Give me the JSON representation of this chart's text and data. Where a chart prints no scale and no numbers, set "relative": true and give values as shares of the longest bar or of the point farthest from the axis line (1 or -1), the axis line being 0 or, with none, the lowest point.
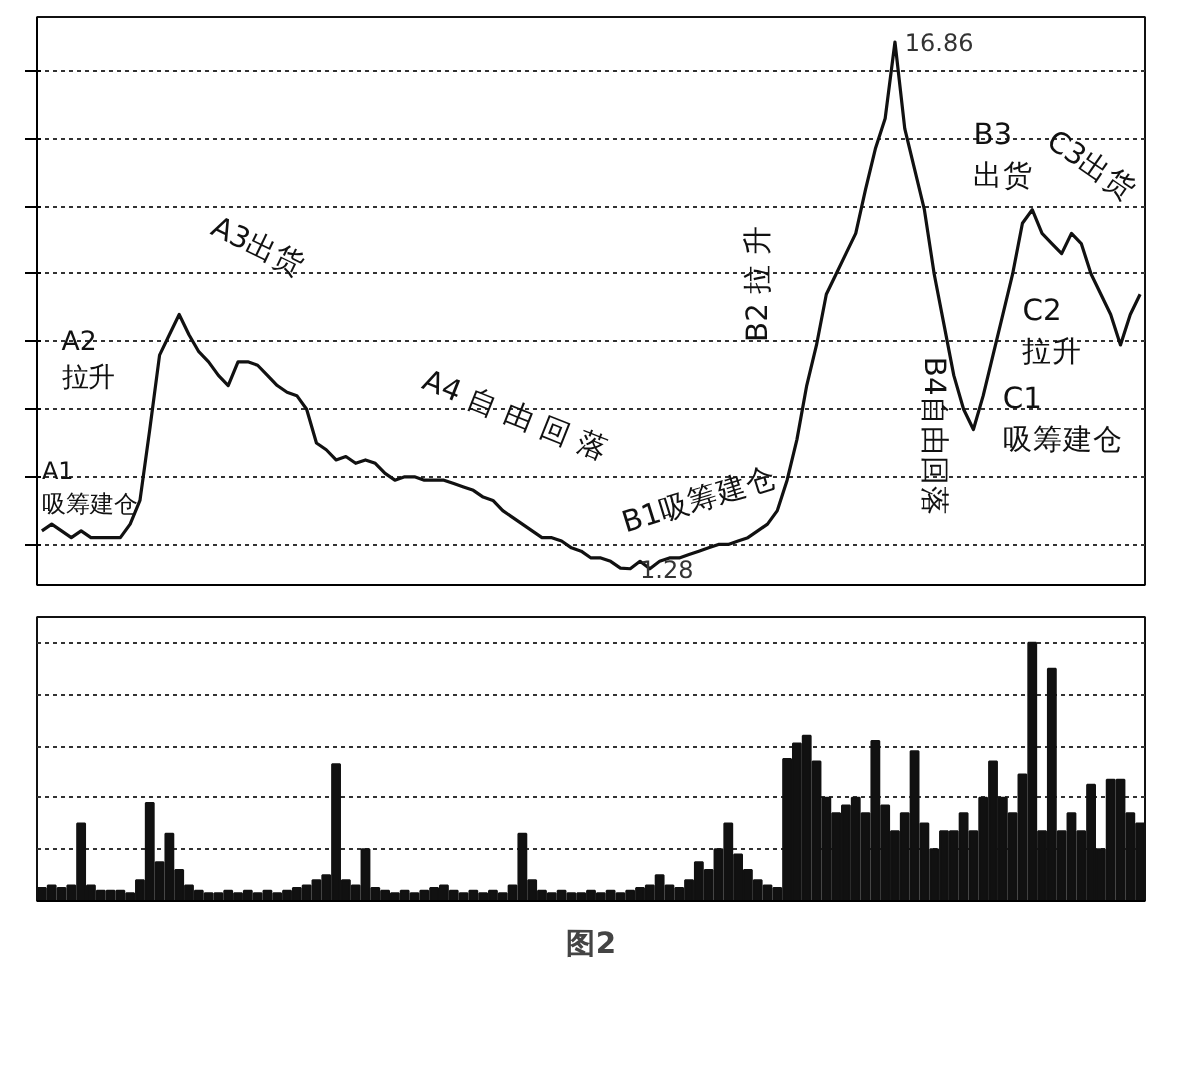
{
  "chart_data": [
    {
      "type": "line",
      "categories": [
        null,
        null,
        null,
        null,
        null,
        null,
        null,
        null,
        null,
        null,
        null,
        null,
        null,
        null,
        null,
        null,
        null,
        null,
        null,
        null,
        null,
        null,
        null,
        null,
        null,
        null,
        null,
        null,
        null,
        null,
        null,
        null,
        null,
        null,
        null,
        null,
        null,
        null,
        null,
        null,
        null,
        null,
        null,
        null,
        null,
        null,
        null,
        null,
        null,
        null,
        null,
        null,
        null,
        null,
        null,
        null,
        null,
        null,
        null,
        null,
        null,
        null,
        null,
        null,
        null,
        null,
        null,
        null,
        null,
        null,
        null,
        null,
        null,
        null,
        null,
        null,
        null,
        null,
        null,
        null,
        null,
        null,
        null,
        null,
        null,
        null,
        null,
        null,
        null,
        null,
        null,
        null,
        null,
        null,
        null,
        null,
        null,
        null,
        null,
        null,
        null,
        null,
        null,
        null,
        null,
        null,
        null,
        null,
        null,
        null,
        null,
        null,
        null
      ],
      "series": [
        {
          "color": "#111111",
          "values": [
            2.4,
            2.6,
            2.4,
            2.2,
            2.4,
            2.2,
            2.2,
            2.2,
            2.2,
            2.6,
            3.3,
            5.4,
            7.6,
            8.2,
            8.8,
            8.2,
            7.7,
            7.4,
            7.0,
            6.7,
            7.4,
            7.4,
            7.3,
            7.0,
            6.7,
            6.5,
            6.4,
            6.0,
            5.0,
            4.8,
            4.5,
            4.6,
            4.4,
            4.5,
            4.4,
            4.1,
            3.9,
            4.0,
            4.0,
            3.9,
            3.9,
            3.9,
            3.8,
            3.7,
            3.6,
            3.4,
            3.3,
            3.0,
            2.8,
            2.6,
            2.4,
            2.2,
            2.2,
            2.1,
            1.9,
            1.8,
            1.6,
            1.6,
            1.5,
            1.3,
            1.28,
            1.5,
            1.28,
            1.5,
            1.6,
            1.6,
            1.7,
            1.8,
            1.9,
            2.0,
            2.0,
            2.1,
            2.2,
            2.4,
            2.6,
            3.0,
            3.9,
            5.1,
            6.7,
            7.9,
            9.4,
            10.0,
            10.6,
            11.2,
            12.5,
            13.7,
            14.6,
            16.86,
            14.3,
            13.1,
            11.9,
            10.0,
            8.5,
            7.0,
            6.0,
            5.4,
            6.4,
            7.6,
            8.8,
            10.0,
            11.5,
            11.9,
            11.2,
            10.9,
            10.6,
            11.2,
            10.9,
            10.0,
            9.4,
            8.8,
            7.9,
            8.8,
            9.4
          ],
          "value_labels": [
            null,
            null,
            null,
            null,
            null,
            null,
            null,
            null,
            null,
            null,
            null,
            null,
            null,
            null,
            null,
            null,
            null,
            null,
            null,
            null,
            null,
            null,
            null,
            null,
            null,
            null,
            null,
            null,
            null,
            null,
            null,
            null,
            null,
            null,
            null,
            null,
            null,
            null,
            null,
            null,
            null,
            null,
            null,
            null,
            null,
            null,
            null,
            null,
            null,
            null,
            null,
            null,
            null,
            null,
            null,
            null,
            null,
            null,
            null,
            null,
            "1.28",
            null,
            null,
            null,
            null,
            null,
            null,
            null,
            null,
            null,
            null,
            null,
            null,
            null,
            null,
            null,
            null,
            null,
            null,
            null,
            null,
            null,
            null,
            null,
            null,
            null,
            null,
            "16.86",
            null,
            null,
            null,
            null,
            null,
            null,
            null,
            null,
            null,
            null,
            null,
            null,
            null,
            null,
            null,
            null,
            null,
            null,
            null,
            null,
            null,
            null,
            null,
            null,
            null
          ]
        }
      ],
      "yticks": [
        {
          "value": 2,
          "label": null
        },
        {
          "value": 4,
          "label": null
        },
        {
          "value": 6,
          "label": null
        },
        {
          "value": 8,
          "label": null
        },
        {
          "value": 10,
          "label": null
        },
        {
          "value": 12,
          "label": null
        },
        {
          "value": 14,
          "label": null
        },
        {
          "value": 16,
          "label": null
        }
      ],
      "ylim": [
        0.8,
        17.6
      ],
      "grid": "y",
      "line_style": "solid",
      "marker": "none",
      "annotations": [
        "A1\n吸筹建仓",
        "A2\n拉升",
        "A3出货",
        "A4  自  由  回  落",
        "B1吸筹建仓",
        "B2  拉  升",
        "B3\n出货",
        "B4自由回落",
        "C2\n拉升",
        "C1\n吸筹建仓",
        "C3出货"
      ]
    },
    {
      "type": "bar",
      "relative": true,
      "grid": "y",
      "categories": [
        null,
        null,
        null,
        null,
        null,
        null,
        null,
        null,
        null,
        null,
        null,
        null,
        null,
        null,
        null,
        null,
        null,
        null,
        null,
        null,
        null,
        null,
        null,
        null,
        null,
        null,
        null,
        null,
        null,
        null,
        null,
        null,
        null,
        null,
        null,
        null,
        null,
        null,
        null,
        null,
        null,
        null,
        null,
        null,
        null,
        null,
        null,
        null,
        null,
        null,
        null,
        null,
        null,
        null,
        null,
        null,
        null,
        null,
        null,
        null,
        null,
        null,
        null,
        null,
        null,
        null,
        null,
        null,
        null,
        null,
        null,
        null,
        null,
        null,
        null,
        null,
        null,
        null,
        null,
        null,
        null,
        null,
        null,
        null,
        null,
        null,
        null,
        null,
        null,
        null,
        null,
        null,
        null,
        null,
        null,
        null,
        null,
        null,
        null,
        null,
        null,
        null,
        null,
        null,
        null,
        null,
        null,
        null,
        null,
        null,
        null,
        null,
        null
      ],
      "color": "#111111",
      "values": [
        0.05,
        0.06,
        0.05,
        0.06,
        0.3,
        0.06,
        0.04,
        0.04,
        0.04,
        0.03,
        0.08,
        0.38,
        0.15,
        0.26,
        0.12,
        0.06,
        0.04,
        0.03,
        0.03,
        0.04,
        0.03,
        0.04,
        0.03,
        0.04,
        0.03,
        0.04,
        0.05,
        0.06,
        0.08,
        0.1,
        0.53,
        0.08,
        0.06,
        0.2,
        0.05,
        0.04,
        0.03,
        0.04,
        0.03,
        0.04,
        0.05,
        0.06,
        0.04,
        0.03,
        0.04,
        0.03,
        0.04,
        0.03,
        0.06,
        0.26,
        0.08,
        0.04,
        0.03,
        0.04,
        0.03,
        0.03,
        0.04,
        0.03,
        0.04,
        0.03,
        0.04,
        0.05,
        0.06,
        0.1,
        0.06,
        0.05,
        0.08,
        0.15,
        0.12,
        0.2,
        0.3,
        0.18,
        0.12,
        0.08,
        0.06,
        0.05,
        0.55,
        0.61,
        0.64,
        0.54,
        0.4,
        0.34,
        0.37,
        0.4,
        0.34,
        0.62,
        0.37,
        0.27,
        0.34,
        0.58,
        0.3,
        0.2,
        0.27,
        0.27,
        0.34,
        0.27,
        0.4,
        0.54,
        0.4,
        0.34,
        0.49,
        1,
        0.27,
        0.9,
        0.27,
        0.34,
        0.27,
        0.45,
        0.2,
        0.47,
        0.47,
        0.34,
        0.3
      ],
      "annotations": [
        "图2"
      ]
    }
  ]
}
